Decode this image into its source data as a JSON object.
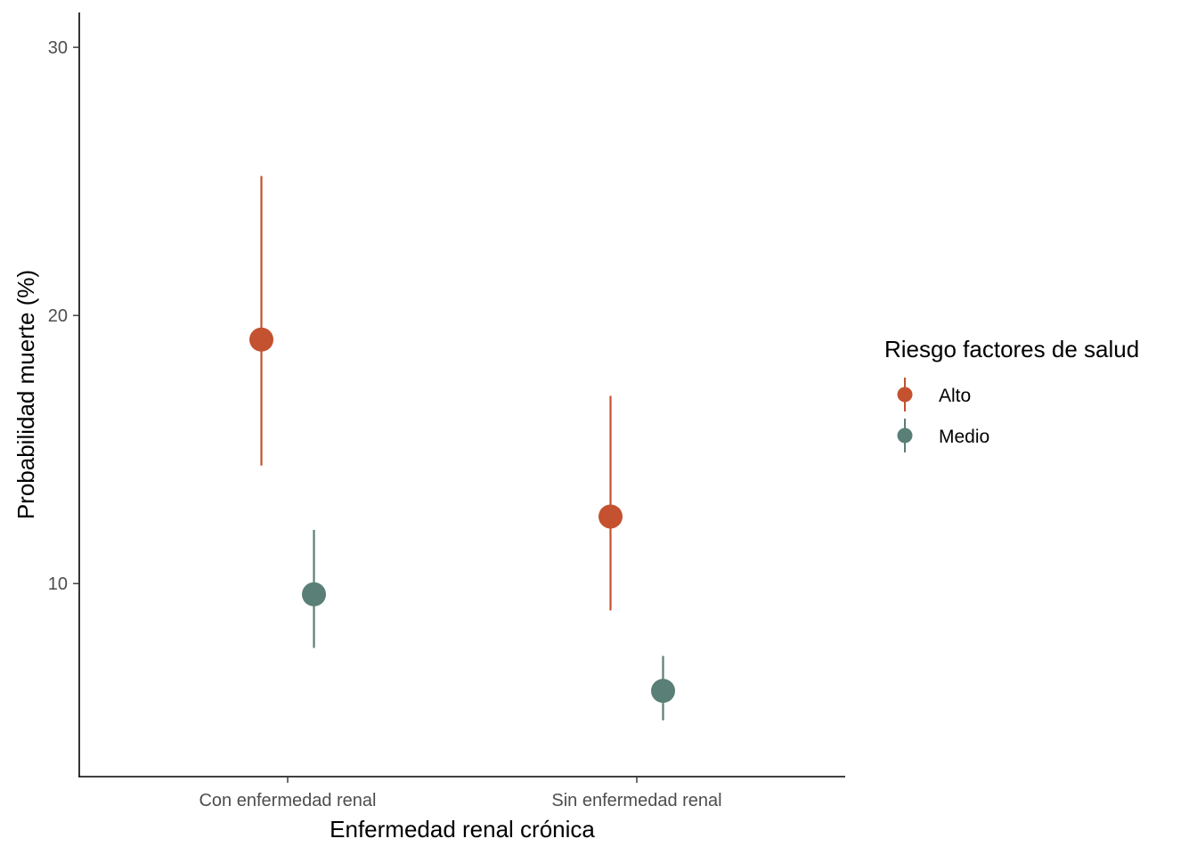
{
  "chart_data": {
    "type": "scatter",
    "subtype": "pointrange",
    "title": "",
    "xlabel": "Enfermedad renal crónica",
    "ylabel": "Probabilidad muerte (%)",
    "categories": [
      "Con enfermedad renal",
      "Sin enfermedad renal"
    ],
    "ylim": [
      2.8,
      31.3
    ],
    "yticks": [
      10,
      20,
      30
    ],
    "grid": false,
    "legend": {
      "title": "Riesgo factores de salud",
      "position": "right"
    },
    "series": [
      {
        "name": "Alto",
        "color": "#C4512F",
        "values": [
          19.1,
          12.5
        ],
        "lower": [
          14.4,
          9.0
        ],
        "upper": [
          25.2,
          17.0
        ]
      },
      {
        "name": "Medio",
        "color": "#5A7F76",
        "values": [
          9.6,
          6.0
        ],
        "lower": [
          7.6,
          4.9
        ],
        "upper": [
          12.0,
          7.3
        ]
      }
    ]
  }
}
